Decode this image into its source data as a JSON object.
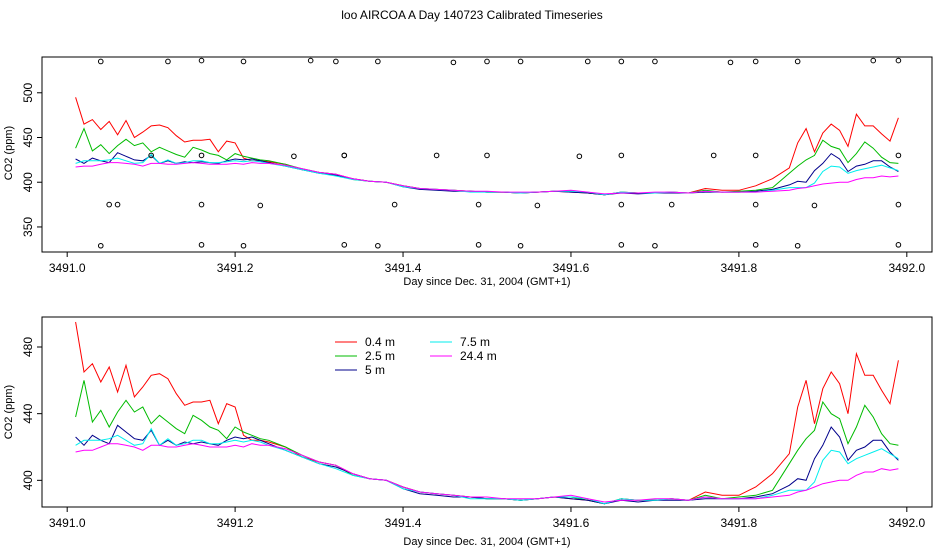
{
  "title": "loo AIRCOA A  Day 140723  Calibrated Timeseries",
  "chart_data": [
    {
      "type": "scatter",
      "xlabel": "Day since Dec. 31, 2004 (GMT+1)",
      "ylabel": "CO2 (ppm)",
      "xlim": [
        3490.97,
        3492.03
      ],
      "ylim": [
        322,
        540
      ],
      "xticks": [
        "3491.0",
        "3491.2",
        "3491.4",
        "3491.6",
        "3491.8",
        "3492.0"
      ],
      "yticks": [
        "350",
        "400",
        "450",
        "500"
      ],
      "series": [
        {
          "color": "#ff0000",
          "x": [
            3491.01,
            3491.02,
            3491.03,
            3491.04,
            3491.05,
            3491.06,
            3491.07,
            3491.08,
            3491.09,
            3491.1,
            3491.11,
            3491.12,
            3491.13,
            3491.14,
            3491.15,
            3491.16,
            3491.17,
            3491.18,
            3491.19,
            3491.2,
            3491.21,
            3491.22,
            3491.23,
            3491.24,
            3491.26,
            3491.28,
            3491.3,
            3491.32,
            3491.34,
            3491.36,
            3491.38,
            3491.4,
            3491.42,
            3491.44,
            3491.46,
            3491.48,
            3491.5,
            3491.52,
            3491.54,
            3491.56,
            3491.58,
            3491.6,
            3491.62,
            3491.64,
            3491.66,
            3491.68,
            3491.7,
            3491.72,
            3491.74,
            3491.76,
            3491.78,
            3491.8,
            3491.82,
            3491.84,
            3491.86,
            3491.87,
            3491.88,
            3491.89,
            3491.9,
            3491.91,
            3491.92,
            3491.93,
            3491.94,
            3491.95,
            3491.96,
            3491.97,
            3491.98,
            3491.99
          ],
          "y": [
            495,
            465,
            470,
            459,
            468,
            453,
            469,
            450,
            456,
            463,
            464,
            461,
            452,
            445,
            447,
            447,
            448,
            434,
            446,
            444,
            427,
            424,
            424,
            423,
            420,
            414,
            411,
            409,
            404,
            401,
            400,
            396,
            393,
            392,
            391,
            390,
            389,
            389,
            388,
            389,
            390,
            389,
            388,
            386,
            389,
            388,
            388,
            389,
            388,
            393,
            391,
            391,
            396,
            404,
            416,
            444,
            460,
            434,
            455,
            465,
            458,
            440,
            476,
            463,
            463,
            454,
            446,
            472
          ]
        },
        {
          "color": "#00bb00",
          "x": [
            3491.01,
            3491.02,
            3491.03,
            3491.04,
            3491.05,
            3491.06,
            3491.07,
            3491.08,
            3491.09,
            3491.1,
            3491.11,
            3491.12,
            3491.13,
            3491.14,
            3491.15,
            3491.16,
            3491.17,
            3491.18,
            3491.19,
            3491.2,
            3491.21,
            3491.22,
            3491.23,
            3491.24,
            3491.26,
            3491.28,
            3491.3,
            3491.32,
            3491.34,
            3491.36,
            3491.38,
            3491.4,
            3491.42,
            3491.44,
            3491.46,
            3491.48,
            3491.5,
            3491.52,
            3491.54,
            3491.56,
            3491.58,
            3491.6,
            3491.62,
            3491.64,
            3491.66,
            3491.68,
            3491.7,
            3491.72,
            3491.74,
            3491.76,
            3491.78,
            3491.8,
            3491.82,
            3491.84,
            3491.86,
            3491.87,
            3491.88,
            3491.89,
            3491.9,
            3491.91,
            3491.92,
            3491.93,
            3491.94,
            3491.95,
            3491.96,
            3491.97,
            3491.98,
            3491.99
          ],
          "y": [
            438,
            460,
            435,
            442,
            432,
            441,
            448,
            441,
            444,
            434,
            439,
            435,
            431,
            428,
            439,
            436,
            432,
            430,
            425,
            432,
            429,
            427,
            425,
            424,
            420,
            415,
            411,
            409,
            403,
            401,
            400,
            396,
            393,
            392,
            391,
            390,
            389,
            389,
            388,
            389,
            390,
            390,
            388,
            386,
            389,
            388,
            388,
            389,
            388,
            391,
            389,
            390,
            391,
            394,
            410,
            418,
            425,
            430,
            447,
            440,
            437,
            422,
            432,
            445,
            438,
            428,
            422,
            421
          ]
        },
        {
          "color": "#00008b",
          "x": [
            3491.01,
            3491.02,
            3491.03,
            3491.04,
            3491.05,
            3491.06,
            3491.07,
            3491.08,
            3491.09,
            3491.1,
            3491.11,
            3491.12,
            3491.13,
            3491.14,
            3491.15,
            3491.16,
            3491.17,
            3491.18,
            3491.19,
            3491.2,
            3491.21,
            3491.22,
            3491.23,
            3491.24,
            3491.26,
            3491.28,
            3491.3,
            3491.32,
            3491.34,
            3491.36,
            3491.38,
            3491.4,
            3491.42,
            3491.44,
            3491.46,
            3491.48,
            3491.5,
            3491.52,
            3491.54,
            3491.56,
            3491.58,
            3491.6,
            3491.62,
            3491.64,
            3491.66,
            3491.68,
            3491.7,
            3491.72,
            3491.74,
            3491.76,
            3491.78,
            3491.8,
            3491.82,
            3491.84,
            3491.86,
            3491.87,
            3491.88,
            3491.89,
            3491.9,
            3491.91,
            3491.92,
            3491.93,
            3491.94,
            3491.95,
            3491.96,
            3491.97,
            3491.98,
            3491.99
          ],
          "y": [
            426,
            421,
            427,
            424,
            422,
            433,
            429,
            425,
            424,
            430,
            421,
            424,
            421,
            423,
            422,
            423,
            422,
            421,
            424,
            426,
            425,
            426,
            424,
            422,
            418,
            414,
            410,
            408,
            404,
            401,
            400,
            395,
            392,
            391,
            390,
            390,
            389,
            389,
            388,
            389,
            390,
            389,
            388,
            386,
            388,
            387,
            388,
            388,
            388,
            389,
            389,
            389,
            390,
            392,
            397,
            401,
            400,
            413,
            421,
            432,
            426,
            412,
            418,
            420,
            424,
            424,
            417,
            412
          ]
        },
        {
          "color": "#00eeee",
          "x": [
            3491.01,
            3491.02,
            3491.03,
            3491.04,
            3491.05,
            3491.06,
            3491.07,
            3491.08,
            3491.09,
            3491.1,
            3491.11,
            3491.12,
            3491.13,
            3491.14,
            3491.15,
            3491.16,
            3491.17,
            3491.18,
            3491.19,
            3491.2,
            3491.21,
            3491.22,
            3491.23,
            3491.24,
            3491.26,
            3491.28,
            3491.3,
            3491.32,
            3491.34,
            3491.36,
            3491.38,
            3491.4,
            3491.42,
            3491.44,
            3491.46,
            3491.48,
            3491.5,
            3491.52,
            3491.54,
            3491.56,
            3491.58,
            3491.6,
            3491.62,
            3491.64,
            3491.66,
            3491.68,
            3491.7,
            3491.72,
            3491.74,
            3491.76,
            3491.78,
            3491.8,
            3491.82,
            3491.84,
            3491.86,
            3491.87,
            3491.88,
            3491.89,
            3491.9,
            3491.91,
            3491.92,
            3491.93,
            3491.94,
            3491.95,
            3491.96,
            3491.97,
            3491.98,
            3491.99
          ],
          "y": [
            421,
            424,
            424,
            424,
            425,
            427,
            424,
            421,
            422,
            431,
            421,
            425,
            421,
            422,
            424,
            424,
            422,
            422,
            423,
            424,
            423,
            424,
            423,
            421,
            418,
            414,
            410,
            407,
            403,
            401,
            400,
            395,
            393,
            392,
            391,
            389,
            389,
            389,
            388,
            389,
            390,
            390,
            389,
            386,
            389,
            388,
            388,
            389,
            388,
            390,
            389,
            389,
            389,
            391,
            394,
            394,
            394,
            399,
            412,
            418,
            417,
            410,
            413,
            415,
            417,
            419,
            416,
            413
          ]
        },
        {
          "color": "#ff00ff",
          "x": [
            3491.01,
            3491.02,
            3491.03,
            3491.04,
            3491.05,
            3491.06,
            3491.07,
            3491.08,
            3491.09,
            3491.1,
            3491.11,
            3491.12,
            3491.13,
            3491.14,
            3491.15,
            3491.16,
            3491.17,
            3491.18,
            3491.19,
            3491.2,
            3491.21,
            3491.22,
            3491.23,
            3491.24,
            3491.26,
            3491.28,
            3491.3,
            3491.32,
            3491.34,
            3491.36,
            3491.38,
            3491.4,
            3491.42,
            3491.44,
            3491.46,
            3491.48,
            3491.5,
            3491.52,
            3491.54,
            3491.56,
            3491.58,
            3491.6,
            3491.62,
            3491.64,
            3491.66,
            3491.68,
            3491.7,
            3491.72,
            3491.74,
            3491.76,
            3491.78,
            3491.8,
            3491.82,
            3491.84,
            3491.86,
            3491.87,
            3491.88,
            3491.89,
            3491.9,
            3491.91,
            3491.92,
            3491.93,
            3491.94,
            3491.95,
            3491.96,
            3491.97,
            3491.98,
            3491.99
          ],
          "y": [
            417,
            418,
            418,
            420,
            422,
            422,
            421,
            420,
            418,
            421,
            421,
            420,
            420,
            421,
            422,
            421,
            420,
            420,
            420,
            421,
            420,
            422,
            421,
            421,
            419,
            415,
            411,
            409,
            404,
            401,
            400,
            396,
            393,
            392,
            391,
            390,
            390,
            389,
            389,
            389,
            390,
            391,
            389,
            387,
            388,
            388,
            389,
            389,
            388,
            390,
            389,
            389,
            389,
            390,
            391,
            393,
            394,
            396,
            398,
            399,
            400,
            400,
            403,
            405,
            405,
            407,
            406,
            407
          ]
        }
      ],
      "markers": {
        "style": "open-circle",
        "x": [
          3491.04,
          3491.12,
          3491.16,
          3491.21,
          3491.29,
          3491.32,
          3491.37,
          3491.46,
          3491.5,
          3491.54,
          3491.62,
          3491.66,
          3491.7,
          3491.79,
          3491.82,
          3491.87,
          3491.96,
          3491.99,
          3491.06,
          3491.16,
          3491.23,
          3491.27,
          3491.33,
          3491.39,
          3491.44,
          3491.49,
          3491.56,
          3491.61,
          3491.66,
          3491.72,
          3491.77,
          3491.82,
          3491.89,
          3491.99,
          3491.05,
          3491.1,
          3491.16,
          3491.33,
          3491.5,
          3491.66,
          3491.82,
          3491.99,
          3491.04,
          3491.16,
          3491.21,
          3491.33,
          3491.37,
          3491.49,
          3491.54,
          3491.66,
          3491.7,
          3491.82,
          3491.87,
          3491.99
        ],
        "y": [
          535,
          535,
          536,
          535,
          536,
          535,
          535,
          534,
          535,
          535,
          535,
          535,
          535,
          534,
          535,
          535,
          536,
          536,
          375,
          375,
          374,
          429,
          430,
          375,
          430,
          375,
          374,
          429,
          375,
          375,
          430,
          375,
          374,
          375,
          375,
          430,
          430,
          430,
          430,
          430,
          430,
          430,
          329,
          330,
          329,
          330,
          329,
          330,
          329,
          330,
          329,
          330,
          329,
          330
        ]
      }
    },
    {
      "type": "line",
      "xlabel": "Day since Dec. 31, 2004 (GMT+1)",
      "ylabel": "CO2 (ppm)",
      "xlim": [
        3490.97,
        3492.03
      ],
      "ylim": [
        384,
        498
      ],
      "xticks": [
        "3491.0",
        "3491.2",
        "3491.4",
        "3491.6",
        "3491.8",
        "3492.0"
      ],
      "yticks": [
        "400",
        "440",
        "480"
      ],
      "legend": {
        "placement": "top-left",
        "entries": [
          {
            "label": "0.4 m",
            "color": "#ff0000"
          },
          {
            "label": "2.5 m",
            "color": "#00bb00"
          },
          {
            "label": "5 m",
            "color": "#00008b"
          },
          {
            "label": "7.5 m",
            "color": "#00eeee"
          },
          {
            "label": "24.4 m",
            "color": "#ff00ff"
          }
        ]
      },
      "series_ref": "same as upper panel lines"
    }
  ]
}
